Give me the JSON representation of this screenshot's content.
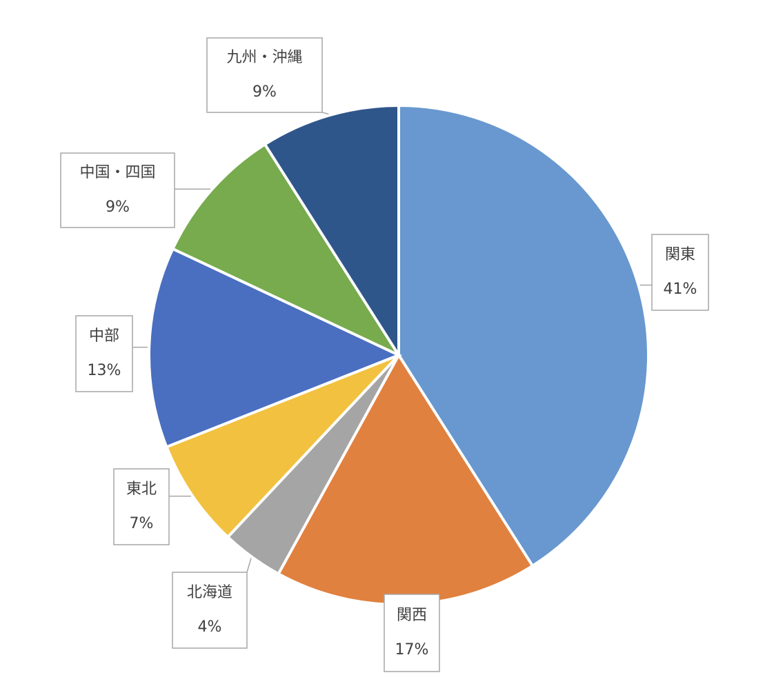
{
  "chart_data": {
    "type": "pie",
    "categories": [
      "関東",
      "関西",
      "北海道",
      "東北",
      "中部",
      "中国・四国",
      "九州・沖縄"
    ],
    "values": [
      41,
      17,
      4,
      7,
      13,
      9,
      9
    ],
    "value_labels": [
      "41%",
      "17%",
      "4%",
      "7%",
      "13%",
      "9%",
      "9%"
    ],
    "colors": [
      "#6898cf",
      "#e0813f",
      "#a5a5a5",
      "#f2c140",
      "#4a6fc1",
      "#77ab4e",
      "#2f568b"
    ]
  }
}
